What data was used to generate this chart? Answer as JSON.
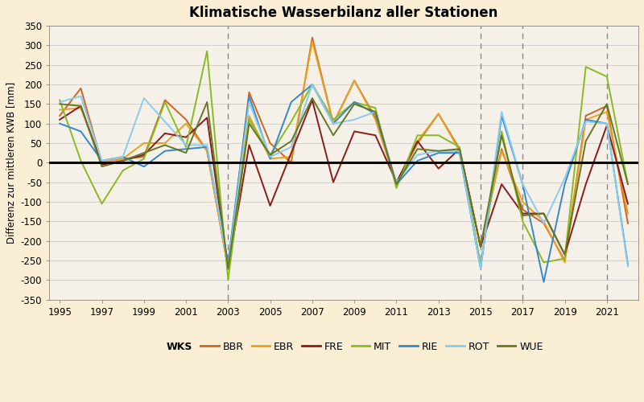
{
  "title": "Klimatische Wasserbilanz aller Stationen",
  "ylabel": "Differenz zur mittleren KWB [mm]",
  "xlim": [
    1994.5,
    2022.5
  ],
  "ylim": [
    -350,
    350
  ],
  "yticks": [
    -350,
    -300,
    -250,
    -200,
    -150,
    -100,
    -50,
    0,
    50,
    100,
    150,
    200,
    250,
    300,
    350
  ],
  "xticks": [
    1995,
    1997,
    1999,
    2001,
    2003,
    2005,
    2007,
    2009,
    2011,
    2013,
    2015,
    2017,
    2019,
    2021
  ],
  "vlines": [
    2003,
    2015,
    2017,
    2021
  ],
  "background_color": "#faefd4",
  "plot_bg_color": "#f5f0e8",
  "series": {
    "BBR": {
      "color": "#cc6622",
      "linewidth": 1.4,
      "values": {
        "1995": 120,
        "1996": 190,
        "1997": 0,
        "1998": 10,
        "1999": 15,
        "2000": 160,
        "2001": 110,
        "2002": 30,
        "2003": -270,
        "2004": 180,
        "2005": 50,
        "2006": 0,
        "2007": 320,
        "2008": 100,
        "2009": 210,
        "2010": 115,
        "2011": -55,
        "2012": 50,
        "2013": 125,
        "2014": 35,
        "2015": -215,
        "2016": 35,
        "2017": -120,
        "2018": -155,
        "2019": -250,
        "2020": 120,
        "2021": 145,
        "2022": -155
      }
    },
    "EBR": {
      "color": "#e8a020",
      "linewidth": 1.4,
      "values": {
        "1995": 135,
        "1996": 140,
        "1997": 0,
        "1998": 10,
        "1999": 50,
        "2000": 50,
        "2001": 100,
        "2002": 30,
        "2003": -270,
        "2004": 120,
        "2005": 10,
        "2006": 15,
        "2007": 310,
        "2008": 100,
        "2009": 210,
        "2010": 110,
        "2011": -55,
        "2012": 55,
        "2013": 125,
        "2014": 30,
        "2015": -215,
        "2016": 30,
        "2017": -100,
        "2018": -150,
        "2019": -255,
        "2020": 110,
        "2021": 130,
        "2022": -130
      }
    },
    "FRE": {
      "color": "#8b1a1a",
      "linewidth": 1.4,
      "values": {
        "1995": 110,
        "1996": 145,
        "1997": -5,
        "1998": 5,
        "1999": 20,
        "2000": 75,
        "2001": 65,
        "2002": 115,
        "2003": -270,
        "2004": 45,
        "2005": -110,
        "2006": 25,
        "2007": 160,
        "2008": -50,
        "2009": 80,
        "2010": 70,
        "2011": -50,
        "2012": 55,
        "2013": -15,
        "2014": 35,
        "2015": -215,
        "2016": -55,
        "2017": -130,
        "2018": -130,
        "2019": -235,
        "2020": -55,
        "2021": 95,
        "2022": -105
      }
    },
    "MIT": {
      "color": "#88bb22",
      "linewidth": 1.4,
      "values": {
        "1995": 160,
        "1996": 5,
        "1997": -105,
        "1998": -20,
        "1999": 10,
        "2000": 155,
        "2001": 40,
        "2002": 285,
        "2003": -300,
        "2004": 110,
        "2005": 20,
        "2006": 105,
        "2007": 200,
        "2008": 110,
        "2009": 155,
        "2010": 140,
        "2011": -65,
        "2012": 70,
        "2013": 70,
        "2014": 40,
        "2015": -260,
        "2016": 80,
        "2017": -150,
        "2018": -255,
        "2019": -245,
        "2020": 245,
        "2021": 220,
        "2022": -55
      }
    },
    "RIE": {
      "color": "#3388cc",
      "linewidth": 1.4,
      "values": {
        "1995": 100,
        "1996": 80,
        "1997": 5,
        "1998": 15,
        "1999": -10,
        "2000": 30,
        "2001": 35,
        "2002": 40,
        "2003": -255,
        "2004": 170,
        "2005": 10,
        "2006": 155,
        "2007": 200,
        "2008": 100,
        "2009": 155,
        "2010": 125,
        "2011": -55,
        "2012": 5,
        "2013": 25,
        "2014": 25,
        "2015": -270,
        "2016": 120,
        "2017": -55,
        "2018": -305,
        "2019": -55,
        "2020": 110,
        "2021": 100,
        "2022": -260
      }
    },
    "ROT": {
      "color": "#88ccee",
      "linewidth": 1.4,
      "values": {
        "1995": 155,
        "1996": 170,
        "1997": 5,
        "1998": 15,
        "1999": 165,
        "2000": 105,
        "2001": 45,
        "2002": 45,
        "2003": -265,
        "2004": 155,
        "2005": 15,
        "2006": 40,
        "2007": 200,
        "2008": 100,
        "2009": 110,
        "2010": 130,
        "2011": -50,
        "2012": 20,
        "2013": 30,
        "2014": 30,
        "2015": -270,
        "2016": 130,
        "2017": -55,
        "2018": -155,
        "2019": -40,
        "2020": 105,
        "2021": 100,
        "2022": -265
      }
    },
    "WUE": {
      "color": "#667722",
      "linewidth": 1.4,
      "values": {
        "1995": 150,
        "1996": 145,
        "1997": -10,
        "1998": 5,
        "1999": 25,
        "2000": 45,
        "2001": 25,
        "2002": 155,
        "2003": -270,
        "2004": 100,
        "2005": 20,
        "2006": 55,
        "2007": 165,
        "2008": 70,
        "2009": 150,
        "2010": 130,
        "2011": -55,
        "2012": 35,
        "2013": 30,
        "2014": 35,
        "2015": -215,
        "2016": 70,
        "2017": -135,
        "2018": -130,
        "2019": -235,
        "2020": 55,
        "2021": 150,
        "2022": -55
      }
    }
  },
  "legend_order": [
    "WKS",
    "BBR",
    "EBR",
    "FRE",
    "MIT",
    "RIE",
    "ROT",
    "WUE"
  ],
  "legend_colors": {
    "WKS": "none",
    "BBR": "#cc6622",
    "EBR": "#e8a020",
    "FRE": "#8b1a1a",
    "MIT": "#88bb22",
    "RIE": "#3388cc",
    "ROT": "#88ccee",
    "WUE": "#667722"
  }
}
